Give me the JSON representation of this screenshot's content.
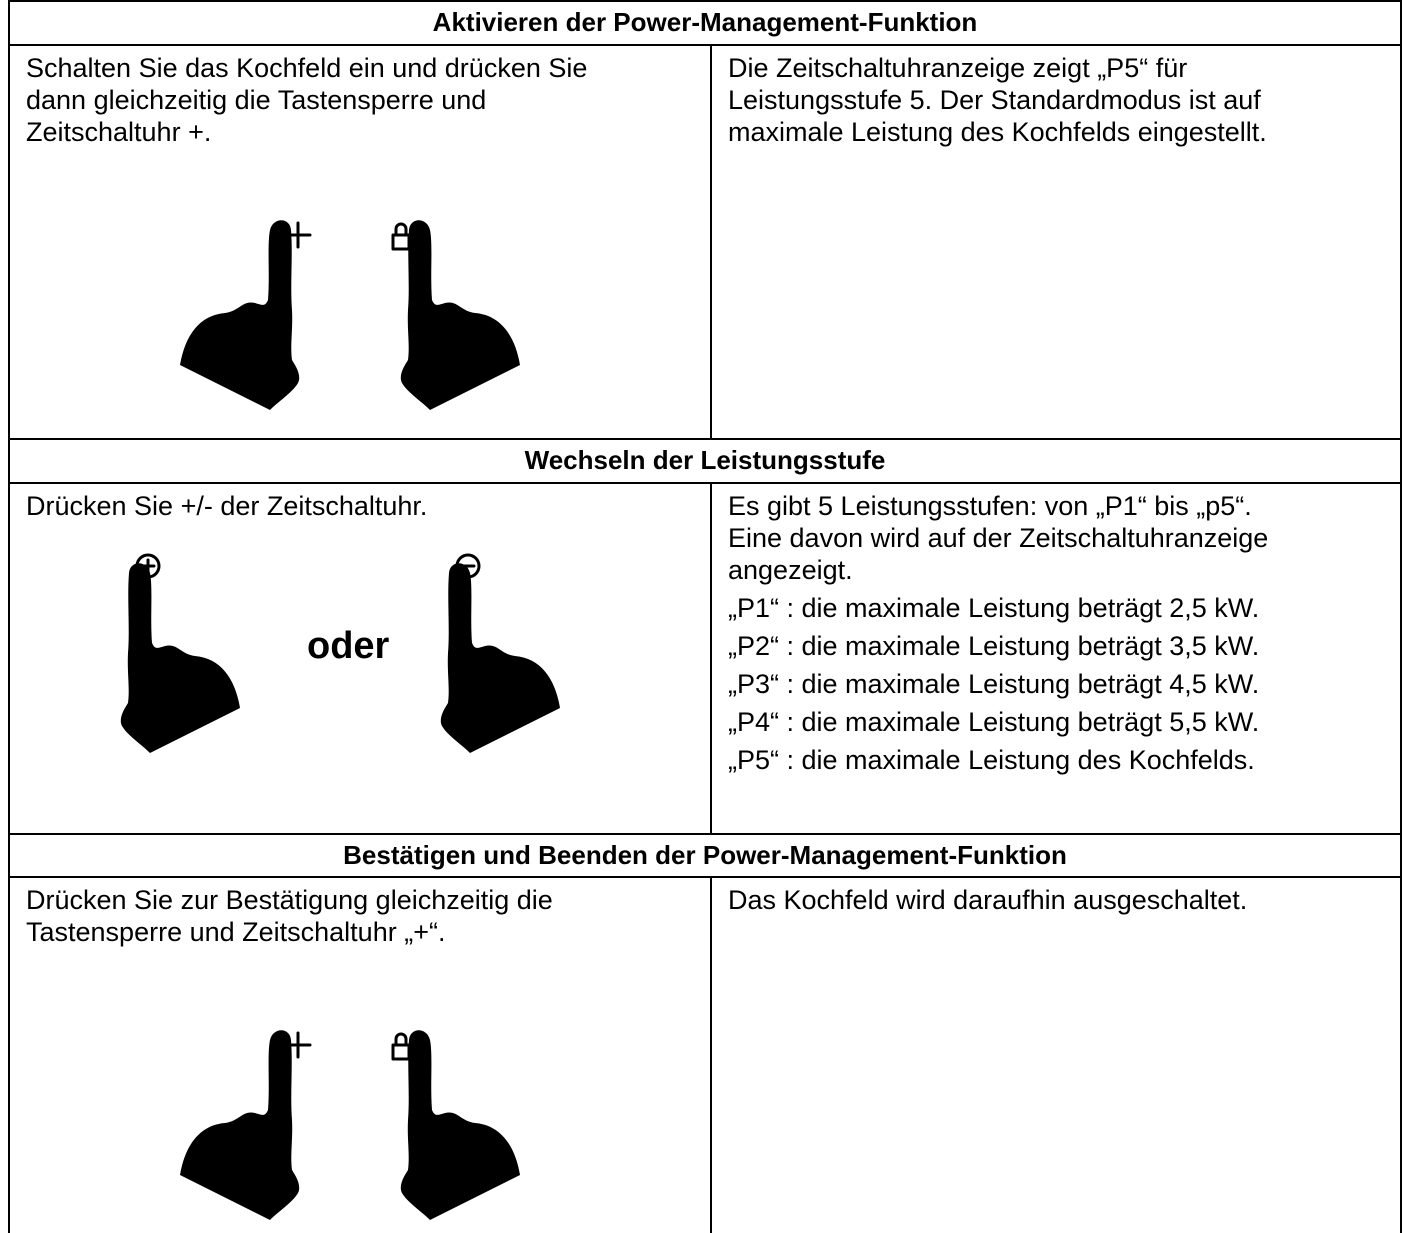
{
  "sections": [
    {
      "title": "Aktivieren der Power-Management-Funktion",
      "left": [
        "Schalten Sie das Kochfeld ein und drücken Sie",
        "dann gleichzeitig die Tastensperre und",
        "Zeitschaltuhr +."
      ],
      "right": [
        "Die Zeitschaltuhranzeige zeigt „P5“ für",
        "Leistungsstufe 5. Der Standardmodus ist auf",
        "maximale Leistung des Kochfelds eingestellt."
      ]
    },
    {
      "title": "Wechseln der Leistungsstufe",
      "left": [
        "Drücken Sie +/- der Zeitschaltuhr."
      ],
      "figure_label": "oder",
      "right": [
        "Es gibt 5 Leistungsstufen: von „P1“ bis „p5“.",
        "Eine davon wird auf der Zeitschaltuhranzeige",
        "angezeigt."
      ],
      "levels": [
        "„P1“ : die maximale Leistung beträgt 2,5 kW.",
        "„P2“ : die maximale Leistung beträgt 3,5 kW.",
        "„P3“ : die maximale Leistung beträgt 4,5 kW.",
        "„P4“ : die maximale Leistung beträgt 5,5 kW.",
        "„P5“ : die maximale Leistung des Kochfelds."
      ]
    },
    {
      "title": "Bestätigen und Beenden der Power-Management-Funktion",
      "left": [
        "Drücken Sie zur Bestätigung gleichzeitig die",
        "Tastensperre und Zeitschaltuhr „+“."
      ],
      "right": [
        "Das Kochfeld wird daraufhin ausgeschaltet."
      ]
    }
  ]
}
